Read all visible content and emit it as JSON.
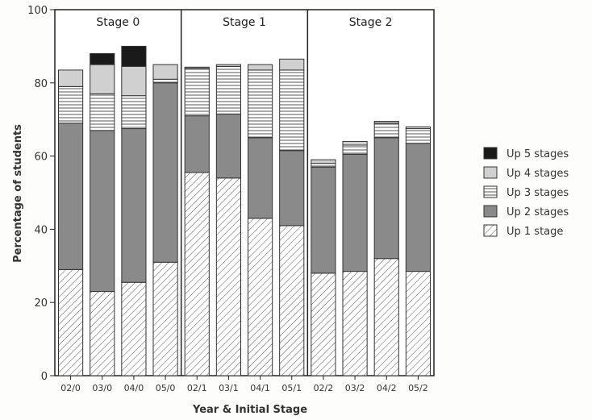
{
  "chart_data": {
    "type": "bar",
    "stacked": true,
    "categories": [
      "02/0",
      "03/0",
      "04/0",
      "05/0",
      "02/1",
      "03/1",
      "04/1",
      "05/1",
      "02/2",
      "03/2",
      "04/2",
      "05/2"
    ],
    "groups": [
      {
        "label": "Stage 0",
        "categories": [
          "02/0",
          "03/0",
          "04/0",
          "05/0"
        ]
      },
      {
        "label": "Stage 1",
        "categories": [
          "02/1",
          "03/1",
          "04/1",
          "05/1"
        ]
      },
      {
        "label": "Stage 2",
        "categories": [
          "02/2",
          "03/2",
          "04/2",
          "05/2"
        ]
      }
    ],
    "series": [
      {
        "name": "Up 1 stage",
        "pattern": "diagonal-hatch",
        "color": "#ffffff",
        "values": [
          29,
          23,
          25.5,
          31,
          55.5,
          54,
          43,
          41,
          28,
          28.5,
          32,
          28.5
        ]
      },
      {
        "name": "Up 2 stages",
        "pattern": "solid",
        "color": "#8a8a8a",
        "values": [
          40,
          44,
          42,
          49,
          15.5,
          17.5,
          22,
          20.5,
          29,
          32,
          33,
          35
        ]
      },
      {
        "name": "Up 3 stages",
        "pattern": "horizontal-lines",
        "color": "#ffffff",
        "values": [
          10,
          10,
          9,
          1,
          13,
          13,
          18.5,
          22,
          1,
          2.5,
          4,
          4
        ]
      },
      {
        "name": "Up 4 stages",
        "pattern": "solid",
        "color": "#d0d0d0",
        "values": [
          4.5,
          8,
          8,
          4,
          0.3,
          0.5,
          1.5,
          3,
          1,
          1,
          0.5,
          0.5
        ]
      },
      {
        "name": "Up 5 stages",
        "pattern": "solid",
        "color": "#1a1a1a",
        "values": [
          0,
          3,
          5.5,
          0,
          0,
          0,
          0,
          0,
          0,
          0,
          0,
          0
        ]
      }
    ],
    "xlabel": "Year & Initial Stage",
    "ylabel": "Percentage of students",
    "ylim": [
      0,
      100
    ],
    "yticks": [
      "0",
      "20",
      "40",
      "60",
      "80",
      "100"
    ],
    "grid": false,
    "legend_position": "right",
    "legend_order": [
      "Up 5 stages",
      "Up 4 stages",
      "Up 3 stages",
      "Up 2 stages",
      "Up 1 stage"
    ]
  }
}
